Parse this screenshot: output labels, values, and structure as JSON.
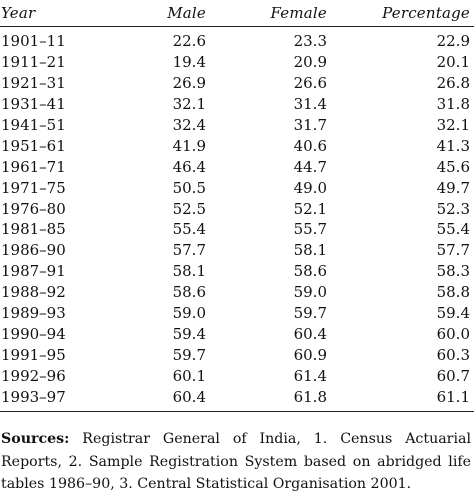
{
  "table": {
    "headers": {
      "year": "Year",
      "male": "Male",
      "female": "Female",
      "percentage": "Percentage"
    },
    "rows": [
      {
        "year": "1901–11",
        "male": "22.6",
        "female": "23.3",
        "percentage": "22.9"
      },
      {
        "year": "1911–21",
        "male": "19.4",
        "female": "20.9",
        "percentage": "20.1"
      },
      {
        "year": "1921–31",
        "male": "26.9",
        "female": "26.6",
        "percentage": "26.8"
      },
      {
        "year": "1931–41",
        "male": "32.1",
        "female": "31.4",
        "percentage": "31.8"
      },
      {
        "year": "1941–51",
        "male": "32.4",
        "female": "31.7",
        "percentage": "32.1"
      },
      {
        "year": "1951–61",
        "male": "41.9",
        "female": "40.6",
        "percentage": "41.3"
      },
      {
        "year": "1961–71",
        "male": "46.4",
        "female": "44.7",
        "percentage": "45.6"
      },
      {
        "year": "1971–75",
        "male": "50.5",
        "female": "49.0",
        "percentage": "49.7"
      },
      {
        "year": "1976–80",
        "male": "52.5",
        "female": "52.1",
        "percentage": "52.3"
      },
      {
        "year": "1981–85",
        "male": "55.4",
        "female": "55.7",
        "percentage": "55.4"
      },
      {
        "year": "1986–90",
        "male": "57.7",
        "female": "58.1",
        "percentage": "57.7"
      },
      {
        "year": "1987–91",
        "male": "58.1",
        "female": "58.6",
        "percentage": "58.3"
      },
      {
        "year": "1988–92",
        "male": "58.6",
        "female": "59.0",
        "percentage": "58.8"
      },
      {
        "year": "1989–93",
        "male": "59.0",
        "female": "59.7",
        "percentage": "59.4"
      },
      {
        "year": "1990–94",
        "male": "59.4",
        "female": "60.4",
        "percentage": "60.0"
      },
      {
        "year": "1991–95",
        "male": "59.7",
        "female": "60.9",
        "percentage": "60.3"
      },
      {
        "year": "1992–96",
        "male": "60.1",
        "female": "61.4",
        "percentage": "60.7"
      },
      {
        "year": "1993–97",
        "male": "60.4",
        "female": "61.8",
        "percentage": "61.1"
      }
    ]
  },
  "sources": {
    "label": "Sources:",
    "text": "Registrar General of India, 1. Census Actuarial Reports, 2. Sample Registration System based on abridged life tables 1986–90, 3. Central Statistical Organisation 2001."
  }
}
